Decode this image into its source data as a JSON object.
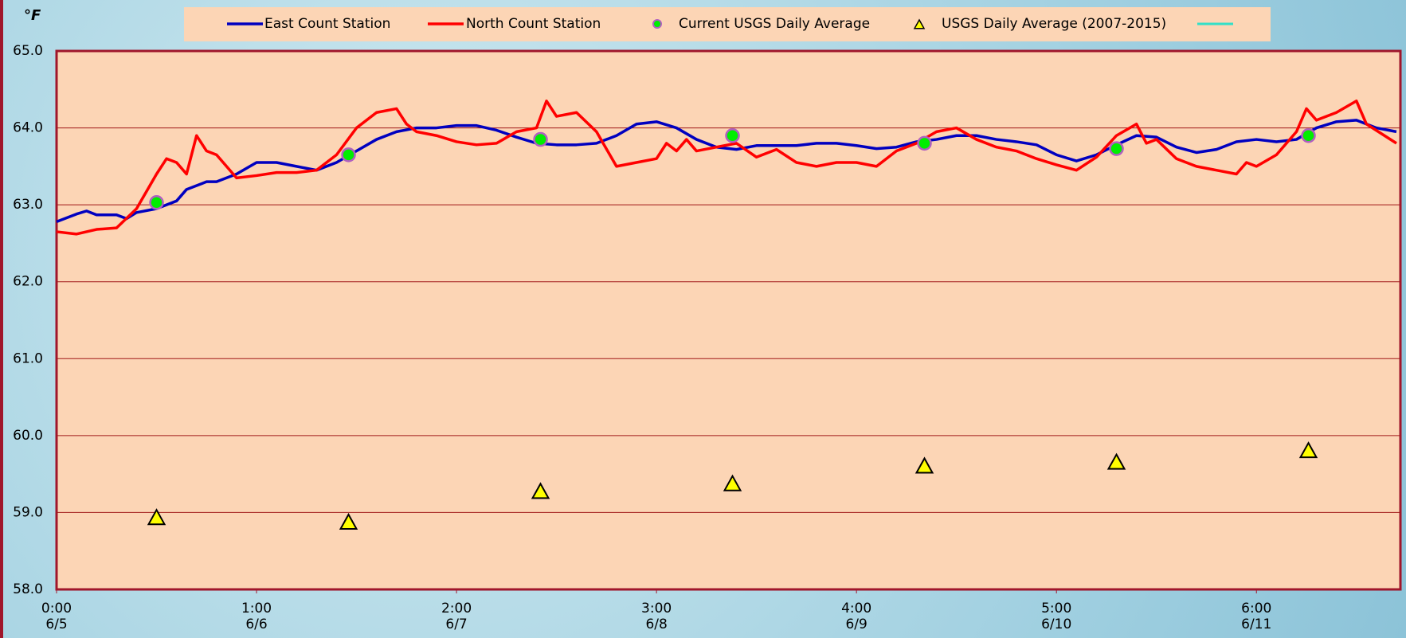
{
  "chart_data": {
    "type": "line",
    "ylabel": "°F",
    "xlim": [
      0,
      6.72
    ],
    "ylim": [
      58,
      65
    ],
    "yticks": [
      {
        "value": 58,
        "label": "58.0"
      },
      {
        "value": 59,
        "label": "59.0"
      },
      {
        "value": 60,
        "label": "60.0"
      },
      {
        "value": 61,
        "label": "61.0"
      },
      {
        "value": 62,
        "label": "62.0"
      },
      {
        "value": 63,
        "label": "63.0"
      },
      {
        "value": 64,
        "label": "64.0"
      },
      {
        "value": 65,
        "label": "65.0"
      }
    ],
    "xticks": [
      {
        "value": 0,
        "label": "0:00\n6/5"
      },
      {
        "value": 1,
        "label": "1:00\n6/6"
      },
      {
        "value": 2,
        "label": "2:00\n6/7"
      },
      {
        "value": 3,
        "label": "3:00\n6/8"
      },
      {
        "value": 4,
        "label": "4:00\n6/9"
      },
      {
        "value": 5,
        "label": "5:00\n6/10"
      },
      {
        "value": 6,
        "label": "6:00\n6/11"
      }
    ],
    "grid": true,
    "legend": "top",
    "series": [
      {
        "name": "East Count Station",
        "color": "#0000c0",
        "kind": "line",
        "x": [
          0,
          0.1,
          0.15,
          0.2,
          0.3,
          0.35,
          0.4,
          0.5,
          0.6,
          0.65,
          0.75,
          0.8,
          0.9,
          1.0,
          1.1,
          1.2,
          1.3,
          1.4,
          1.5,
          1.6,
          1.7,
          1.8,
          1.9,
          2.0,
          2.1,
          2.2,
          2.3,
          2.4,
          2.5,
          2.6,
          2.7,
          2.8,
          2.9,
          3.0,
          3.1,
          3.2,
          3.3,
          3.4,
          3.5,
          3.6,
          3.7,
          3.8,
          3.9,
          4.0,
          4.1,
          4.2,
          4.3,
          4.4,
          4.5,
          4.6,
          4.7,
          4.8,
          4.9,
          5.0,
          5.1,
          5.2,
          5.3,
          5.4,
          5.5,
          5.6,
          5.7,
          5.8,
          5.9,
          6.0,
          6.1,
          6.2,
          6.3,
          6.4,
          6.5,
          6.6,
          6.7
        ],
        "values": [
          62.78,
          62.88,
          62.92,
          62.87,
          62.87,
          62.82,
          62.9,
          62.95,
          63.05,
          63.2,
          63.3,
          63.3,
          63.4,
          63.55,
          63.55,
          63.5,
          63.45,
          63.55,
          63.7,
          63.85,
          63.95,
          64.0,
          64.0,
          64.03,
          64.03,
          63.97,
          63.88,
          63.8,
          63.78,
          63.78,
          63.8,
          63.9,
          64.05,
          64.08,
          64.0,
          63.85,
          63.75,
          63.72,
          63.77,
          63.77,
          63.77,
          63.8,
          63.8,
          63.77,
          63.73,
          63.75,
          63.82,
          63.85,
          63.9,
          63.9,
          63.85,
          63.82,
          63.78,
          63.65,
          63.57,
          63.65,
          63.78,
          63.9,
          63.88,
          63.75,
          63.68,
          63.72,
          63.82,
          63.85,
          63.82,
          63.85,
          64.0,
          64.08,
          64.1,
          64.0,
          63.95
        ]
      },
      {
        "name": "North Count Station",
        "color": "#ff0000",
        "kind": "line",
        "x": [
          0,
          0.1,
          0.2,
          0.3,
          0.4,
          0.5,
          0.55,
          0.6,
          0.65,
          0.7,
          0.75,
          0.8,
          0.9,
          1.0,
          1.1,
          1.2,
          1.3,
          1.4,
          1.5,
          1.6,
          1.7,
          1.75,
          1.8,
          1.9,
          2.0,
          2.1,
          2.2,
          2.3,
          2.4,
          2.45,
          2.5,
          2.6,
          2.7,
          2.8,
          2.9,
          3.0,
          3.05,
          3.1,
          3.15,
          3.2,
          3.3,
          3.4,
          3.5,
          3.6,
          3.7,
          3.8,
          3.9,
          4.0,
          4.1,
          4.2,
          4.3,
          4.4,
          4.5,
          4.6,
          4.7,
          4.8,
          4.9,
          5.0,
          5.1,
          5.2,
          5.3,
          5.4,
          5.45,
          5.5,
          5.6,
          5.7,
          5.8,
          5.9,
          5.95,
          6.0,
          6.1,
          6.2,
          6.25,
          6.3,
          6.4,
          6.5,
          6.55,
          6.7
        ],
        "values": [
          62.65,
          62.62,
          62.68,
          62.7,
          62.95,
          63.4,
          63.6,
          63.55,
          63.4,
          63.9,
          63.7,
          63.65,
          63.35,
          63.38,
          63.42,
          63.42,
          63.45,
          63.65,
          64.0,
          64.2,
          64.25,
          64.05,
          63.95,
          63.9,
          63.82,
          63.78,
          63.8,
          63.95,
          64.0,
          64.35,
          64.15,
          64.2,
          63.95,
          63.5,
          63.55,
          63.6,
          63.8,
          63.7,
          63.85,
          63.7,
          63.75,
          63.8,
          63.62,
          63.72,
          63.55,
          63.5,
          63.55,
          63.55,
          63.5,
          63.7,
          63.8,
          63.95,
          64.0,
          63.85,
          63.75,
          63.7,
          63.6,
          63.52,
          63.45,
          63.62,
          63.9,
          64.05,
          63.8,
          63.85,
          63.6,
          63.5,
          63.45,
          63.4,
          63.55,
          63.5,
          63.65,
          63.95,
          64.25,
          64.1,
          64.2,
          64.35,
          64.05,
          63.8
        ]
      },
      {
        "name": "Current USGS Daily Average",
        "color": "#00ee00",
        "kind": "circle",
        "x": [
          0.5,
          1.46,
          2.42,
          3.38,
          4.34,
          5.3,
          6.26
        ],
        "values": [
          63.03,
          63.65,
          63.85,
          63.9,
          63.8,
          63.73,
          63.9
        ]
      },
      {
        "name": "USGS Daily Average (2007-2015)",
        "color": "#ffff00",
        "kind": "triangle",
        "x": [
          0.5,
          1.46,
          2.42,
          3.38,
          4.34,
          5.3,
          6.26
        ],
        "values": [
          58.93,
          58.87,
          59.27,
          59.37,
          59.6,
          59.65,
          59.8
        ]
      }
    ]
  }
}
